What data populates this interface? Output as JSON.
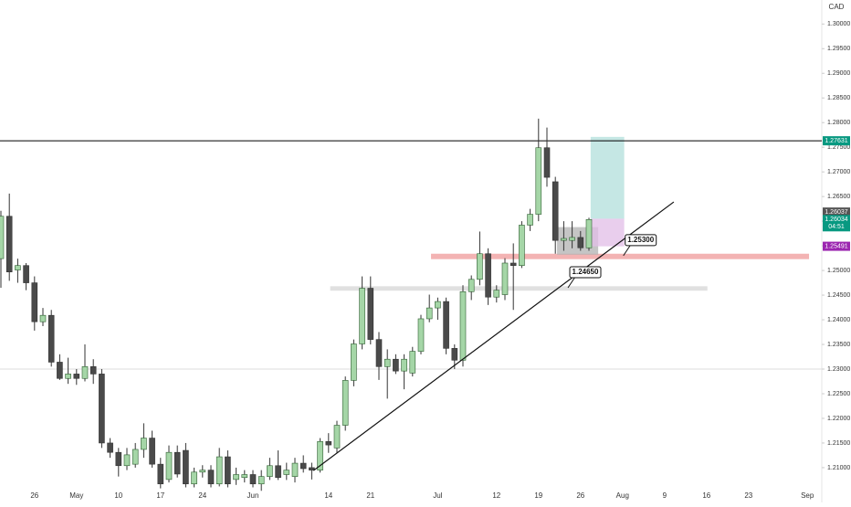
{
  "chart_data": {
    "type": "candlestick",
    "currency": "CAD",
    "open": [
      1.2524,
      1.261,
      1.2501,
      1.251,
      1.2475,
      1.2396,
      1.2409,
      1.2314,
      1.2281,
      1.229,
      1.2281,
      1.2305,
      1.229,
      1.215,
      1.2131,
      1.2104,
      1.2107,
      1.2137,
      1.216,
      1.2107,
      1.2076,
      1.2131,
      1.2135,
      1.2067,
      1.2091,
      1.2095,
      1.2067,
      1.2122,
      1.2076,
      1.208,
      1.2086,
      1.2067,
      1.2082,
      1.2104,
      1.2086,
      1.2082,
      1.2109,
      1.21,
      1.2095,
      1.2153,
      1.214,
      1.2186,
      1.2277,
      1.2351,
      1.2464,
      1.236,
      1.2305,
      1.232,
      1.2296,
      1.2292,
      1.2336,
      1.2402,
      1.2424,
      1.2437,
      1.2342,
      1.2318,
      1.2457,
      1.2482,
      1.2534,
      1.2446,
      1.2451,
      1.2515,
      1.251,
      1.2592,
      1.2614,
      1.2749,
      1.268,
      1.2561,
      1.2561,
      1.2567,
      1.2546
    ],
    "high": [
      1.2621,
      1.2656,
      1.2524,
      1.2515,
      1.2488,
      1.2424,
      1.242,
      1.233,
      1.2323,
      1.23,
      1.235,
      1.232,
      1.23,
      1.216,
      1.214,
      1.214,
      1.215,
      1.219,
      1.2175,
      1.212,
      1.2145,
      1.2145,
      1.215,
      1.21,
      1.2105,
      1.2105,
      1.214,
      1.2135,
      1.21,
      1.2095,
      1.2095,
      1.2095,
      1.212,
      1.2135,
      1.211,
      1.212,
      1.2125,
      1.211,
      1.216,
      1.217,
      1.2195,
      1.2285,
      1.236,
      1.2488,
      1.2488,
      1.2375,
      1.234,
      1.233,
      1.233,
      1.2345,
      1.241,
      1.2451,
      1.2445,
      1.2445,
      1.235,
      1.247,
      1.249,
      1.2579,
      1.2545,
      1.247,
      1.2525,
      1.2555,
      1.26,
      1.2625,
      1.2808,
      1.279,
      1.269,
      1.26,
      1.26,
      1.258,
      1.2607
    ],
    "low": [
      1.2465,
      1.2479,
      1.2475,
      1.246,
      1.2378,
      1.2387,
      1.2305,
      1.2278,
      1.227,
      1.2268,
      1.2275,
      1.227,
      1.214,
      1.212,
      1.2082,
      1.2095,
      1.21,
      1.212,
      1.21,
      1.2058,
      1.207,
      1.208,
      1.206,
      1.206,
      1.208,
      1.206,
      1.2062,
      1.206,
      1.2065,
      1.207,
      1.206,
      1.2053,
      1.2075,
      1.2075,
      1.2075,
      1.207,
      1.209,
      1.2076,
      1.209,
      1.213,
      1.213,
      1.2175,
      1.2265,
      1.234,
      1.235,
      1.2278,
      1.224,
      1.229,
      1.2259,
      1.2285,
      1.233,
      1.2395,
      1.24,
      1.233,
      1.23,
      1.2305,
      1.244,
      1.247,
      1.243,
      1.2435,
      1.244,
      1.242,
      1.2505,
      1.258,
      1.26,
      1.267,
      1.2534,
      1.254,
      1.2545,
      1.254,
      1.254
    ],
    "close": [
      1.261,
      1.2497,
      1.251,
      1.2475,
      1.2396,
      1.2409,
      1.2314,
      1.2281,
      1.229,
      1.2281,
      1.2305,
      1.229,
      1.215,
      1.2131,
      1.2104,
      1.2126,
      1.2137,
      1.216,
      1.2107,
      1.2067,
      1.2131,
      1.2087,
      1.2067,
      1.2091,
      1.2095,
      1.2067,
      1.2122,
      1.2067,
      1.2086,
      1.2086,
      1.2067,
      1.2082,
      1.2104,
      1.208,
      1.2095,
      1.2109,
      1.2098,
      1.2095,
      1.2153,
      1.2146,
      1.2186,
      1.2277,
      1.2351,
      1.2464,
      1.236,
      1.2305,
      1.232,
      1.2296,
      1.232,
      1.2336,
      1.2402,
      1.2424,
      1.2437,
      1.2342,
      1.2318,
      1.2457,
      1.2482,
      1.2534,
      1.2446,
      1.246,
      1.2515,
      1.251,
      1.2592,
      1.2614,
      1.2749,
      1.2689,
      1.2561,
      1.2565,
      1.2567,
      1.2546,
      1.26034
    ],
    "up_color": "#a5d6a7",
    "down_color": "#4a4a4a",
    "ylim": [
      1.2035,
      1.3045
    ],
    "yticks": [
      {
        "value": 1.21,
        "label": "1.21000"
      },
      {
        "value": 1.215,
        "label": "1.21500"
      },
      {
        "value": 1.22,
        "label": "1.22000"
      },
      {
        "value": 1.225,
        "label": "1.22500"
      },
      {
        "value": 1.23,
        "label": "1.23000"
      },
      {
        "value": 1.235,
        "label": "1.23500"
      },
      {
        "value": 1.24,
        "label": "1.24000"
      },
      {
        "value": 1.245,
        "label": "1.24500"
      },
      {
        "value": 1.25,
        "label": "1.25000"
      },
      {
        "value": 1.255,
        "label": "1.25500"
      },
      {
        "value": 1.26,
        "label": "1.26000"
      },
      {
        "value": 1.265,
        "label": "1.26500"
      },
      {
        "value": 1.27,
        "label": "1.27000"
      },
      {
        "value": 1.275,
        "label": "1.27500"
      },
      {
        "value": 1.28,
        "label": "1.28000"
      },
      {
        "value": 1.285,
        "label": "1.28500"
      },
      {
        "value": 1.29,
        "label": "1.29000"
      },
      {
        "value": 1.295,
        "label": "1.29500"
      },
      {
        "value": 1.3,
        "label": "1.30000"
      }
    ],
    "xticks": [
      {
        "value": 4,
        "label": "26"
      },
      {
        "value": 9,
        "label": "May"
      },
      {
        "value": 14,
        "label": "10"
      },
      {
        "value": 19,
        "label": "17"
      },
      {
        "value": 24,
        "label": "24"
      },
      {
        "value": 30,
        "label": "Jun"
      },
      {
        "value": 39,
        "label": "14"
      },
      {
        "value": 44,
        "label": "21"
      },
      {
        "value": 52,
        "label": "Jul"
      },
      {
        "value": 59,
        "label": "12"
      },
      {
        "value": 64,
        "label": "19"
      },
      {
        "value": 69,
        "label": "26"
      },
      {
        "value": 74,
        "label": "Aug"
      },
      {
        "value": 79,
        "label": "9"
      },
      {
        "value": 84,
        "label": "16"
      },
      {
        "value": 89,
        "label": "23"
      },
      {
        "value": 96,
        "label": "Sep"
      }
    ],
    "levels": [
      {
        "value": 1.27631,
        "label": "1.27631",
        "color": "#000000"
      },
      {
        "value": 1.23,
        "color": "#dddddd"
      }
    ],
    "price_badges": [
      {
        "value": 1.26037,
        "label": "1.26037",
        "color": "#555555"
      },
      {
        "value": 1.26034,
        "label": "1.26034",
        "countdown": "04:51",
        "color": "#089981"
      },
      {
        "value": 1.25491,
        "label": "1.25491",
        "color": "#9c27b0"
      }
    ],
    "zones": [
      {
        "from": 1.2523,
        "to": 1.2534,
        "x": [
          51.2,
          96.2
        ],
        "color": "#ef9a9a"
      },
      {
        "from": 1.2459,
        "to": 1.2468,
        "x": [
          39.2,
          84.1
        ],
        "color": "#d6d6d6"
      },
      {
        "from": 1.2532,
        "to": 1.2588,
        "x": [
          66.2,
          71.1
        ],
        "color": "#b2b2b2"
      },
      {
        "from": 1.2605,
        "to": 1.2771,
        "x": [
          70.2,
          74.2
        ],
        "color": "#b2dfdb"
      },
      {
        "from": 1.2549,
        "to": 1.2605,
        "x": [
          70.2,
          74.2
        ],
        "color": "#e1bee7"
      }
    ],
    "trendline": {
      "x": [
        37.2,
        80.1
      ],
      "y": [
        1.2094,
        1.2639
      ]
    },
    "annotations": [
      {
        "label": "1.25300",
        "value": 1.253,
        "x": 74.1
      },
      {
        "label": "1.24650",
        "value": 1.2465,
        "x": 67.5
      }
    ]
  }
}
